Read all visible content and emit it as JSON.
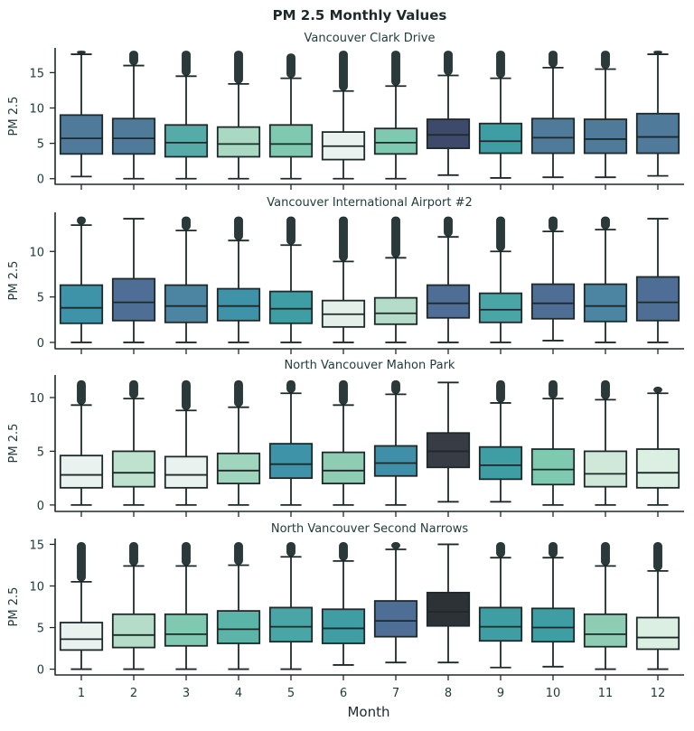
{
  "chart_data": {
    "type": "box",
    "title": "PM 2.5 Monthly Values",
    "xlabel": "Month",
    "categories": [
      "1",
      "2",
      "3",
      "4",
      "5",
      "6",
      "7",
      "8",
      "9",
      "10",
      "11",
      "12"
    ],
    "panels": [
      {
        "title": "Vancouver Clark Drive",
        "ylabel": "PM 2.5",
        "ylim": [
          -0.8,
          18.5
        ],
        "yticks": [
          0,
          5,
          10,
          15
        ],
        "boxes": [
          {
            "q1": 3.5,
            "median": 5.7,
            "q3": 9.0,
            "whislo": 0.3,
            "whishi": 17.6,
            "flier_max": 17.8,
            "color": "#4f7a9a"
          },
          {
            "q1": 3.5,
            "median": 5.7,
            "q3": 8.5,
            "whislo": 0.0,
            "whishi": 16.0,
            "flier_max": 17.8,
            "color": "#4f7a9a"
          },
          {
            "q1": 3.1,
            "median": 5.1,
            "q3": 7.6,
            "whislo": 0.0,
            "whishi": 14.5,
            "flier_max": 17.8,
            "color": "#56aaa8"
          },
          {
            "q1": 3.1,
            "median": 4.9,
            "q3": 7.3,
            "whislo": 0.0,
            "whishi": 13.4,
            "flier_max": 17.8,
            "color": "#a9d8c3"
          },
          {
            "q1": 3.1,
            "median": 4.9,
            "q3": 7.6,
            "whislo": 0.0,
            "whishi": 14.2,
            "flier_max": 17.4,
            "color": "#7ec9af"
          },
          {
            "q1": 2.7,
            "median": 4.6,
            "q3": 6.6,
            "whislo": 0.0,
            "whishi": 12.4,
            "flier_max": 17.8,
            "color": "#e9f2ee"
          },
          {
            "q1": 3.5,
            "median": 5.1,
            "q3": 7.1,
            "whislo": 0.0,
            "whishi": 13.1,
            "flier_max": 17.8,
            "color": "#7ec9af"
          },
          {
            "q1": 4.3,
            "median": 6.2,
            "q3": 8.4,
            "whislo": 0.5,
            "whishi": 14.6,
            "flier_max": 17.8,
            "color": "#3e4a6b"
          },
          {
            "q1": 3.6,
            "median": 5.3,
            "q3": 7.8,
            "whislo": 0.1,
            "whishi": 14.2,
            "flier_max": 17.8,
            "color": "#3f9ea3"
          },
          {
            "q1": 3.6,
            "median": 5.8,
            "q3": 8.5,
            "whislo": 0.2,
            "whishi": 15.7,
            "flier_max": 17.8,
            "color": "#4f7a9a"
          },
          {
            "q1": 3.6,
            "median": 5.6,
            "q3": 8.4,
            "whislo": 0.2,
            "whishi": 15.5,
            "flier_max": 17.8,
            "color": "#4f7a9a"
          },
          {
            "q1": 3.6,
            "median": 5.9,
            "q3": 9.2,
            "whislo": 0.4,
            "whishi": 17.6,
            "flier_max": 17.8,
            "color": "#4f7a9a"
          }
        ]
      },
      {
        "title": "Vancouver International Airport #2",
        "ylabel": "PM 2.5",
        "ylim": [
          -0.7,
          14.3
        ],
        "yticks": [
          0,
          5,
          10
        ],
        "boxes": [
          {
            "q1": 2.1,
            "median": 3.8,
            "q3": 6.3,
            "whislo": 0.0,
            "whishi": 12.9,
            "flier_max": 13.6,
            "color": "#3f93a8"
          },
          {
            "q1": 2.4,
            "median": 4.4,
            "q3": 7.0,
            "whislo": 0.0,
            "whishi": 13.6,
            "flier_max": null,
            "color": "#4f6e96"
          },
          {
            "q1": 2.2,
            "median": 4.0,
            "q3": 6.3,
            "whislo": 0.0,
            "whishi": 12.3,
            "flier_max": 13.6,
            "color": "#4b85a1"
          },
          {
            "q1": 2.4,
            "median": 4.0,
            "q3": 5.9,
            "whislo": 0.0,
            "whishi": 11.2,
            "flier_max": 13.6,
            "color": "#3f93a8"
          },
          {
            "q1": 2.1,
            "median": 3.7,
            "q3": 5.6,
            "whislo": 0.0,
            "whishi": 10.7,
            "flier_max": 13.6,
            "color": "#3f9ea3"
          },
          {
            "q1": 1.7,
            "median": 3.1,
            "q3": 4.6,
            "whislo": 0.0,
            "whishi": 8.9,
            "flier_max": 13.6,
            "color": "#e4efea"
          },
          {
            "q1": 2.0,
            "median": 3.2,
            "q3": 4.9,
            "whislo": 0.0,
            "whishi": 9.3,
            "flier_max": 13.6,
            "color": "#b4dcc8"
          },
          {
            "q1": 2.7,
            "median": 4.3,
            "q3": 6.3,
            "whislo": 0.0,
            "whishi": 11.6,
            "flier_max": 13.6,
            "color": "#4f6e96"
          },
          {
            "q1": 2.2,
            "median": 3.6,
            "q3": 5.4,
            "whislo": 0.0,
            "whishi": 10.0,
            "flier_max": 13.6,
            "color": "#4aa5a6"
          },
          {
            "q1": 2.6,
            "median": 4.3,
            "q3": 6.4,
            "whislo": 0.2,
            "whishi": 12.2,
            "flier_max": 13.6,
            "color": "#4f6e96"
          },
          {
            "q1": 2.3,
            "median": 4.0,
            "q3": 6.4,
            "whislo": 0.0,
            "whishi": 12.4,
            "flier_max": 13.6,
            "color": "#4b85a1"
          },
          {
            "q1": 2.4,
            "median": 4.4,
            "q3": 7.2,
            "whislo": 0.0,
            "whishi": 13.6,
            "flier_max": null,
            "color": "#4f6e96"
          }
        ]
      },
      {
        "title": "North Vancouver Mahon Park",
        "ylabel": "PM 2.5",
        "ylim": [
          -0.6,
          12.1
        ],
        "yticks": [
          0,
          5,
          10
        ],
        "boxes": [
          {
            "q1": 1.6,
            "median": 2.8,
            "q3": 4.6,
            "whislo": 0.0,
            "whishi": 9.3,
            "flier_max": 11.4,
            "color": "#e9f2ee"
          },
          {
            "q1": 1.7,
            "median": 3.0,
            "q3": 5.0,
            "whislo": 0.0,
            "whishi": 9.9,
            "flier_max": 11.4,
            "color": "#bfe2cf"
          },
          {
            "q1": 1.6,
            "median": 2.8,
            "q3": 4.5,
            "whislo": 0.0,
            "whishi": 8.8,
            "flier_max": 11.4,
            "color": "#e9f2ee"
          },
          {
            "q1": 2.0,
            "median": 3.2,
            "q3": 4.8,
            "whislo": 0.0,
            "whishi": 9.1,
            "flier_max": 11.4,
            "color": "#9fd4bd"
          },
          {
            "q1": 2.5,
            "median": 3.8,
            "q3": 5.7,
            "whislo": 0.0,
            "whishi": 10.4,
            "flier_max": 11.4,
            "color": "#3f93a8"
          },
          {
            "q1": 2.0,
            "median": 3.2,
            "q3": 4.9,
            "whislo": 0.0,
            "whishi": 9.3,
            "flier_max": 11.4,
            "color": "#8ecdb4"
          },
          {
            "q1": 2.7,
            "median": 3.9,
            "q3": 5.5,
            "whislo": 0.0,
            "whishi": 10.3,
            "flier_max": 11.4,
            "color": "#3f8fa8"
          },
          {
            "q1": 3.5,
            "median": 5.0,
            "q3": 6.7,
            "whislo": 0.3,
            "whishi": 11.4,
            "flier_max": null,
            "color": "#383c44"
          },
          {
            "q1": 2.4,
            "median": 3.7,
            "q3": 5.4,
            "whislo": 0.3,
            "whishi": 9.5,
            "flier_max": 11.4,
            "color": "#3f9ea3"
          },
          {
            "q1": 1.9,
            "median": 3.3,
            "q3": 5.2,
            "whislo": 0.0,
            "whishi": 9.9,
            "flier_max": 11.4,
            "color": "#7ec9af"
          },
          {
            "q1": 1.7,
            "median": 2.9,
            "q3": 5.0,
            "whislo": 0.0,
            "whishi": 9.8,
            "flier_max": 11.4,
            "color": "#cfe8da"
          },
          {
            "q1": 1.6,
            "median": 3.0,
            "q3": 5.2,
            "whislo": 0.0,
            "whishi": 10.4,
            "flier_max": 10.8,
            "color": "#dcefe3"
          }
        ]
      },
      {
        "title": "North Vancouver Second Narrows",
        "ylabel": "PM 2.5",
        "ylim": [
          -0.7,
          15.7
        ],
        "yticks": [
          0,
          5,
          10,
          15
        ],
        "boxes": [
          {
            "q1": 2.3,
            "median": 3.6,
            "q3": 5.6,
            "whislo": 0.0,
            "whishi": 10.5,
            "flier_max": 15.0,
            "color": "#e9f2ee"
          },
          {
            "q1": 2.6,
            "median": 4.1,
            "q3": 6.6,
            "whislo": 0.0,
            "whishi": 12.4,
            "flier_max": 15.0,
            "color": "#b4dcc8"
          },
          {
            "q1": 2.8,
            "median": 4.2,
            "q3": 6.6,
            "whislo": 0.0,
            "whishi": 12.4,
            "flier_max": 15.0,
            "color": "#7ec9af"
          },
          {
            "q1": 3.1,
            "median": 4.8,
            "q3": 7.0,
            "whislo": 0.0,
            "whishi": 12.5,
            "flier_max": 15.0,
            "color": "#5bb4a8"
          },
          {
            "q1": 3.3,
            "median": 5.1,
            "q3": 7.4,
            "whislo": 0.0,
            "whishi": 13.5,
            "flier_max": 15.0,
            "color": "#4aa5a6"
          },
          {
            "q1": 3.1,
            "median": 4.9,
            "q3": 7.2,
            "whislo": 0.5,
            "whishi": 13.0,
            "flier_max": 15.0,
            "color": "#3f9ea3"
          },
          {
            "q1": 3.9,
            "median": 5.8,
            "q3": 8.2,
            "whislo": 0.8,
            "whishi": 14.4,
            "flier_max": 15.0,
            "color": "#4f6e96"
          },
          {
            "q1": 5.2,
            "median": 6.9,
            "q3": 9.2,
            "whislo": 0.8,
            "whishi": 15.0,
            "flier_max": null,
            "color": "#2d3236"
          },
          {
            "q1": 3.4,
            "median": 5.1,
            "q3": 7.4,
            "whislo": 0.2,
            "whishi": 13.4,
            "flier_max": 15.0,
            "color": "#3f9ea3"
          },
          {
            "q1": 3.3,
            "median": 5.0,
            "q3": 7.3,
            "whislo": 0.3,
            "whishi": 13.4,
            "flier_max": 15.0,
            "color": "#3f9ea3"
          },
          {
            "q1": 2.7,
            "median": 4.2,
            "q3": 6.6,
            "whislo": 0.0,
            "whishi": 12.4,
            "flier_max": 15.0,
            "color": "#8ecdb4"
          },
          {
            "q1": 2.4,
            "median": 3.8,
            "q3": 6.2,
            "whislo": 0.0,
            "whishi": 11.8,
            "flier_max": 15.0,
            "color": "#dcefe3"
          }
        ]
      }
    ]
  },
  "colors": {
    "axis": "#1f2a2a",
    "line": "#1e2a2a",
    "text": "#1e3a3a",
    "background": "#ffffff"
  }
}
